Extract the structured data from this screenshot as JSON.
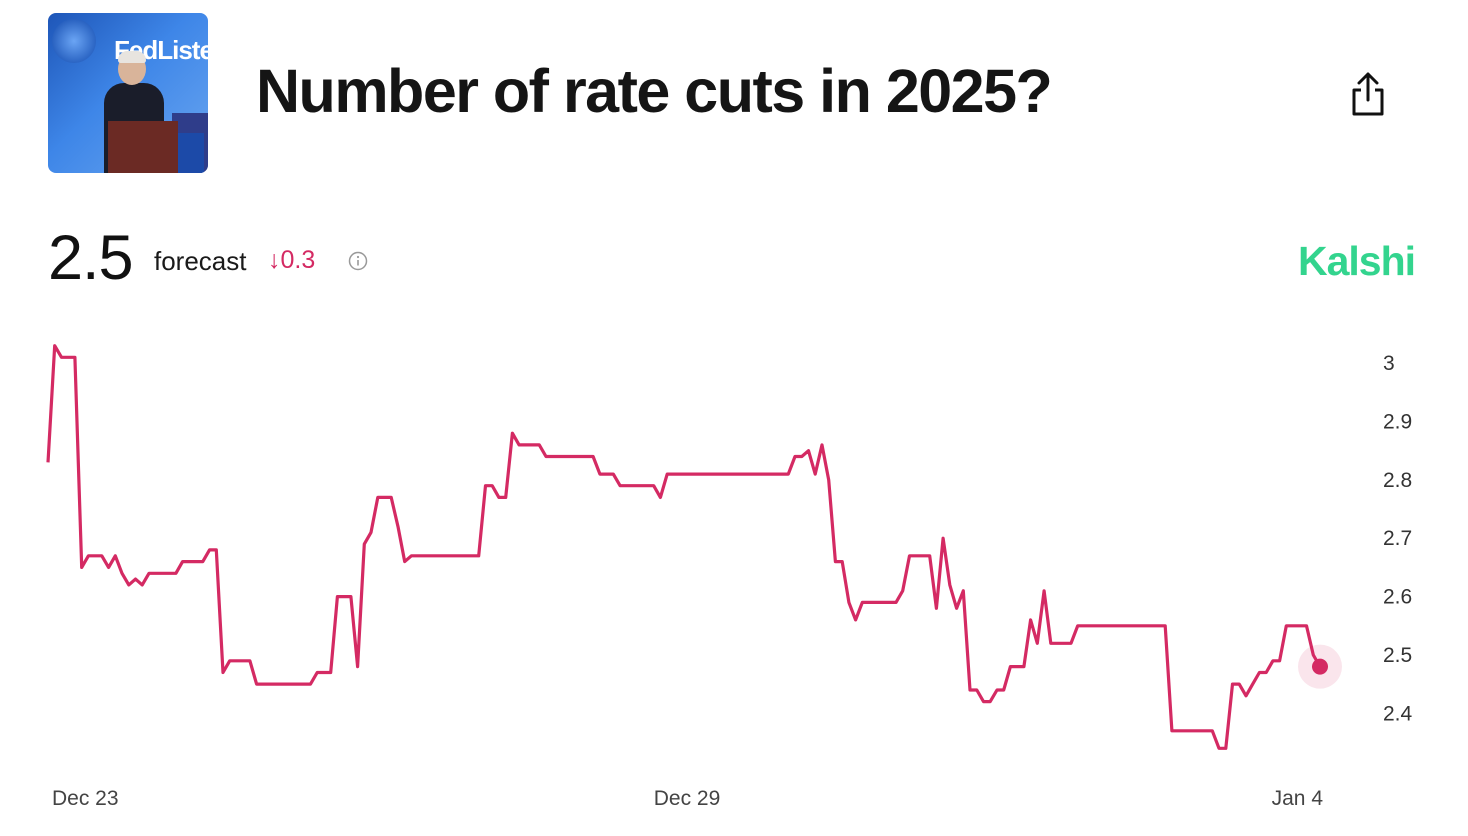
{
  "market": {
    "title": "Number of rate cuts in 2025?",
    "thumbnail_text": "FedListens"
  },
  "summary": {
    "value": "2.5",
    "label": "forecast",
    "change": "↓0.3",
    "change_color": "#d42a63"
  },
  "provider": {
    "name": "Kalshi",
    "color": "#33d48e"
  },
  "icons": {
    "share": "share-icon",
    "info": "info-icon"
  },
  "chart_data": {
    "type": "line",
    "line_color": "#d42a63",
    "x_tick_labels": [
      "Dec 23",
      "Dec 29",
      "Jan 4"
    ],
    "ylim": [
      2.32,
      3.05
    ],
    "yticks": [
      3,
      2.9,
      2.8,
      2.7,
      2.6,
      2.5,
      2.4
    ],
    "grid": false,
    "series": [
      {
        "values": [
          2.83,
          3.03,
          3.01,
          3.01,
          3.01,
          2.65,
          2.67,
          2.67,
          2.67,
          2.65,
          2.67,
          2.64,
          2.62,
          2.63,
          2.62,
          2.64,
          2.64,
          2.64,
          2.64,
          2.64,
          2.66,
          2.66,
          2.66,
          2.66,
          2.68,
          2.68,
          2.47,
          2.49,
          2.49,
          2.49,
          2.49,
          2.45,
          2.45,
          2.45,
          2.45,
          2.45,
          2.45,
          2.45,
          2.45,
          2.45,
          2.47,
          2.47,
          2.47,
          2.6,
          2.6,
          2.6,
          2.48,
          2.69,
          2.71,
          2.77,
          2.77,
          2.77,
          2.72,
          2.66,
          2.67,
          2.67,
          2.67,
          2.67,
          2.67,
          2.67,
          2.67,
          2.67,
          2.67,
          2.67,
          2.67,
          2.79,
          2.79,
          2.77,
          2.77,
          2.88,
          2.86,
          2.86,
          2.86,
          2.86,
          2.84,
          2.84,
          2.84,
          2.84,
          2.84,
          2.84,
          2.84,
          2.84,
          2.81,
          2.81,
          2.81,
          2.79,
          2.79,
          2.79,
          2.79,
          2.79,
          2.79,
          2.77,
          2.81,
          2.81,
          2.81,
          2.81,
          2.81,
          2.81,
          2.81,
          2.81,
          2.81,
          2.81,
          2.81,
          2.81,
          2.81,
          2.81,
          2.81,
          2.81,
          2.81,
          2.81,
          2.81,
          2.84,
          2.84,
          2.85,
          2.81,
          2.86,
          2.8,
          2.66,
          2.66,
          2.59,
          2.56,
          2.59,
          2.59,
          2.59,
          2.59,
          2.59,
          2.59,
          2.61,
          2.67,
          2.67,
          2.67,
          2.67,
          2.58,
          2.7,
          2.62,
          2.58,
          2.61,
          2.44,
          2.44,
          2.42,
          2.42,
          2.44,
          2.44,
          2.48,
          2.48,
          2.48,
          2.56,
          2.52,
          2.61,
          2.52,
          2.52,
          2.52,
          2.52,
          2.55,
          2.55,
          2.55,
          2.55,
          2.55,
          2.55,
          2.55,
          2.55,
          2.55,
          2.55,
          2.55,
          2.55,
          2.55,
          2.55,
          2.37,
          2.37,
          2.37,
          2.37,
          2.37,
          2.37,
          2.37,
          2.34,
          2.34,
          2.45,
          2.45,
          2.43,
          2.45,
          2.47,
          2.47,
          2.49,
          2.49,
          2.55,
          2.55,
          2.55,
          2.55,
          2.5,
          2.48
        ]
      }
    ]
  }
}
